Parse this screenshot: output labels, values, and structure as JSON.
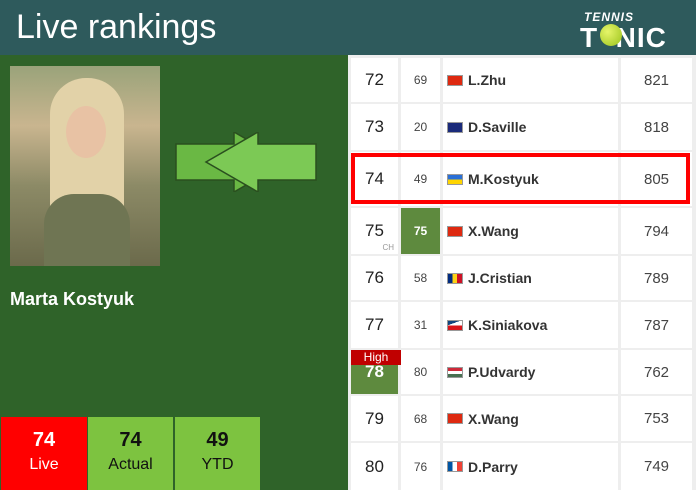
{
  "header": {
    "title": "Live rankings",
    "logo": "TENNIS TONIC"
  },
  "player": {
    "name": "Marta Kostyuk"
  },
  "stats": [
    {
      "value": "74",
      "label": "Live"
    },
    {
      "value": "74",
      "label": "Actual"
    },
    {
      "value": "49",
      "label": "YTD"
    }
  ],
  "colors": {
    "header": "#2e5a5c",
    "panel": "#2f6329",
    "live": "#ff0000",
    "stat": "#7dc340",
    "highlight": "#ff0000"
  },
  "rows": [
    {
      "rank": "72",
      "prev": "69",
      "name": "L.Zhu",
      "country": "China",
      "points": "821"
    },
    {
      "rank": "73",
      "prev": "20",
      "name": "D.Saville",
      "country": "Australia",
      "points": "818"
    },
    {
      "rank": "74",
      "prev": "49",
      "name": "M.Kostyuk",
      "country": "Ukraine",
      "points": "805",
      "highlighted": true
    },
    {
      "rank": "75",
      "prev": "75",
      "name": "X.Wang",
      "country": "China",
      "points": "794",
      "rank_note": "CH",
      "prev_green": true
    },
    {
      "rank": "76",
      "prev": "58",
      "name": "J.Cristian",
      "country": "Romania",
      "points": "789"
    },
    {
      "rank": "77",
      "prev": "31",
      "name": "K.Siniakova",
      "country": "Czech Republic",
      "points": "787"
    },
    {
      "rank": "78",
      "prev": "80",
      "name": "P.Udvardy",
      "country": "Hungary",
      "points": "762",
      "badge": "High",
      "rank_green": true
    },
    {
      "rank": "79",
      "prev": "68",
      "name": "X.Wang",
      "country": "China",
      "points": "753"
    },
    {
      "rank": "80",
      "prev": "76",
      "name": "D.Parry",
      "country": "France",
      "points": "749"
    }
  ]
}
